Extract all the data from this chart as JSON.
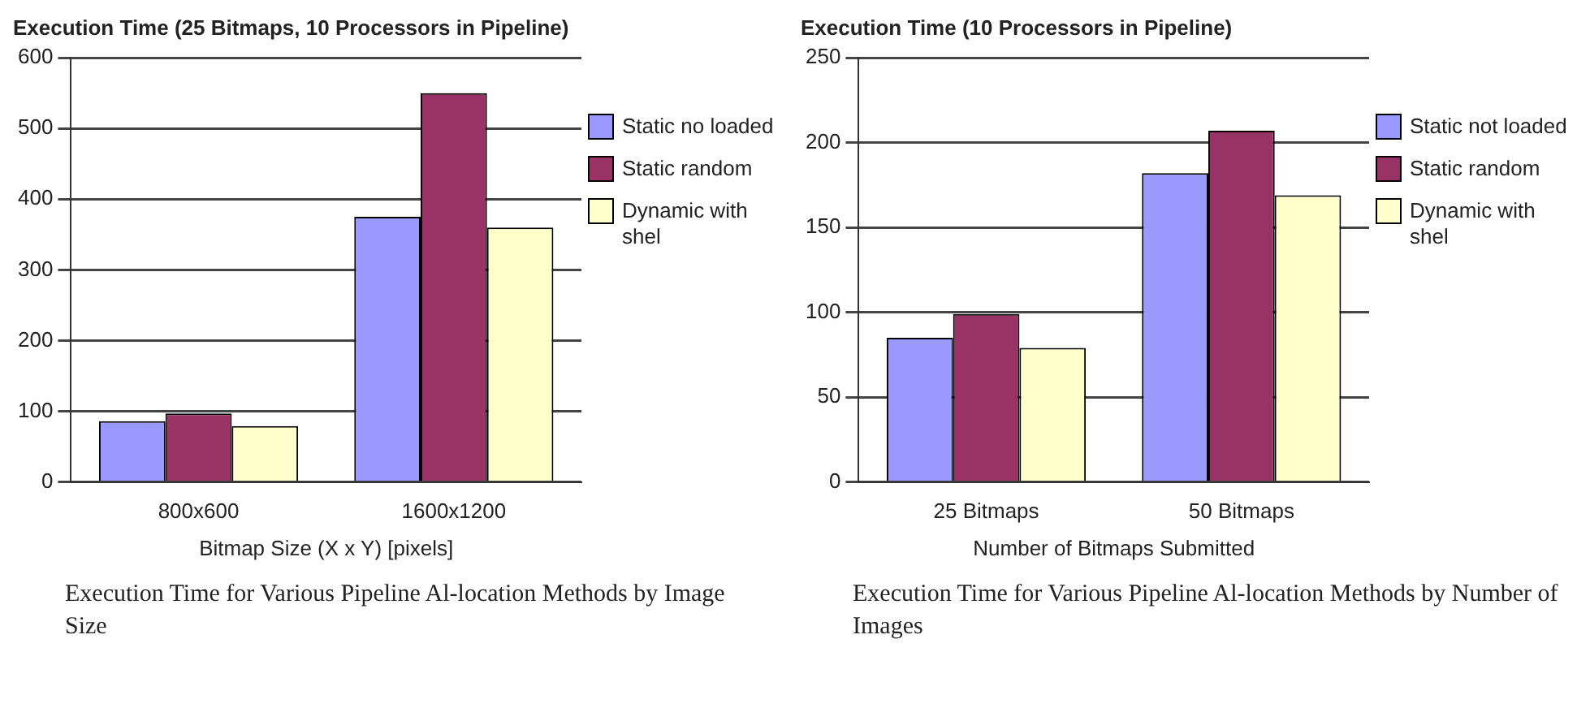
{
  "chart_data": [
    {
      "type": "bar",
      "title": "Execution Time (25 Bitmaps, 10 Processors in Pipeline)",
      "xlabel": "Bitmap Size (X x Y) [pixels]",
      "categories": [
        "800x600",
        "1600x1200"
      ],
      "series": [
        {
          "name": "Static no loaded",
          "color": "#9999ff",
          "values": [
            86,
            375
          ]
        },
        {
          "name": "Static random",
          "color": "#993366",
          "values": [
            97,
            550
          ]
        },
        {
          "name": "Dynamic with shel",
          "color": "#ffffcc",
          "values": [
            79,
            360
          ]
        }
      ],
      "ylim": [
        0,
        600
      ],
      "yticks": [
        0,
        100,
        200,
        300,
        400,
        500,
        600
      ],
      "grid": "y",
      "legend": "right",
      "annotations": [
        "Execution Time for Various Pipeline Al-location Methods by Image Size"
      ]
    },
    {
      "type": "bar",
      "title": "Execution Time (10 Processors in Pipeline)",
      "xlabel": "Number of Bitmaps Submitted",
      "categories": [
        "25 Bitmaps",
        "50 Bitmaps"
      ],
      "series": [
        {
          "name": "Static not loaded",
          "color": "#9999ff",
          "values": [
            85,
            182
          ]
        },
        {
          "name": "Static random",
          "color": "#993366",
          "values": [
            99,
            207
          ]
        },
        {
          "name": "Dynamic with shel",
          "color": "#ffffcc",
          "values": [
            79,
            169
          ]
        }
      ],
      "ylim": [
        0,
        250
      ],
      "yticks": [
        0,
        50,
        100,
        150,
        200,
        250
      ],
      "grid": "y",
      "legend": "right",
      "annotations": [
        "Execution Time for Various Pipeline Al-location Methods by Number of Images"
      ]
    }
  ]
}
